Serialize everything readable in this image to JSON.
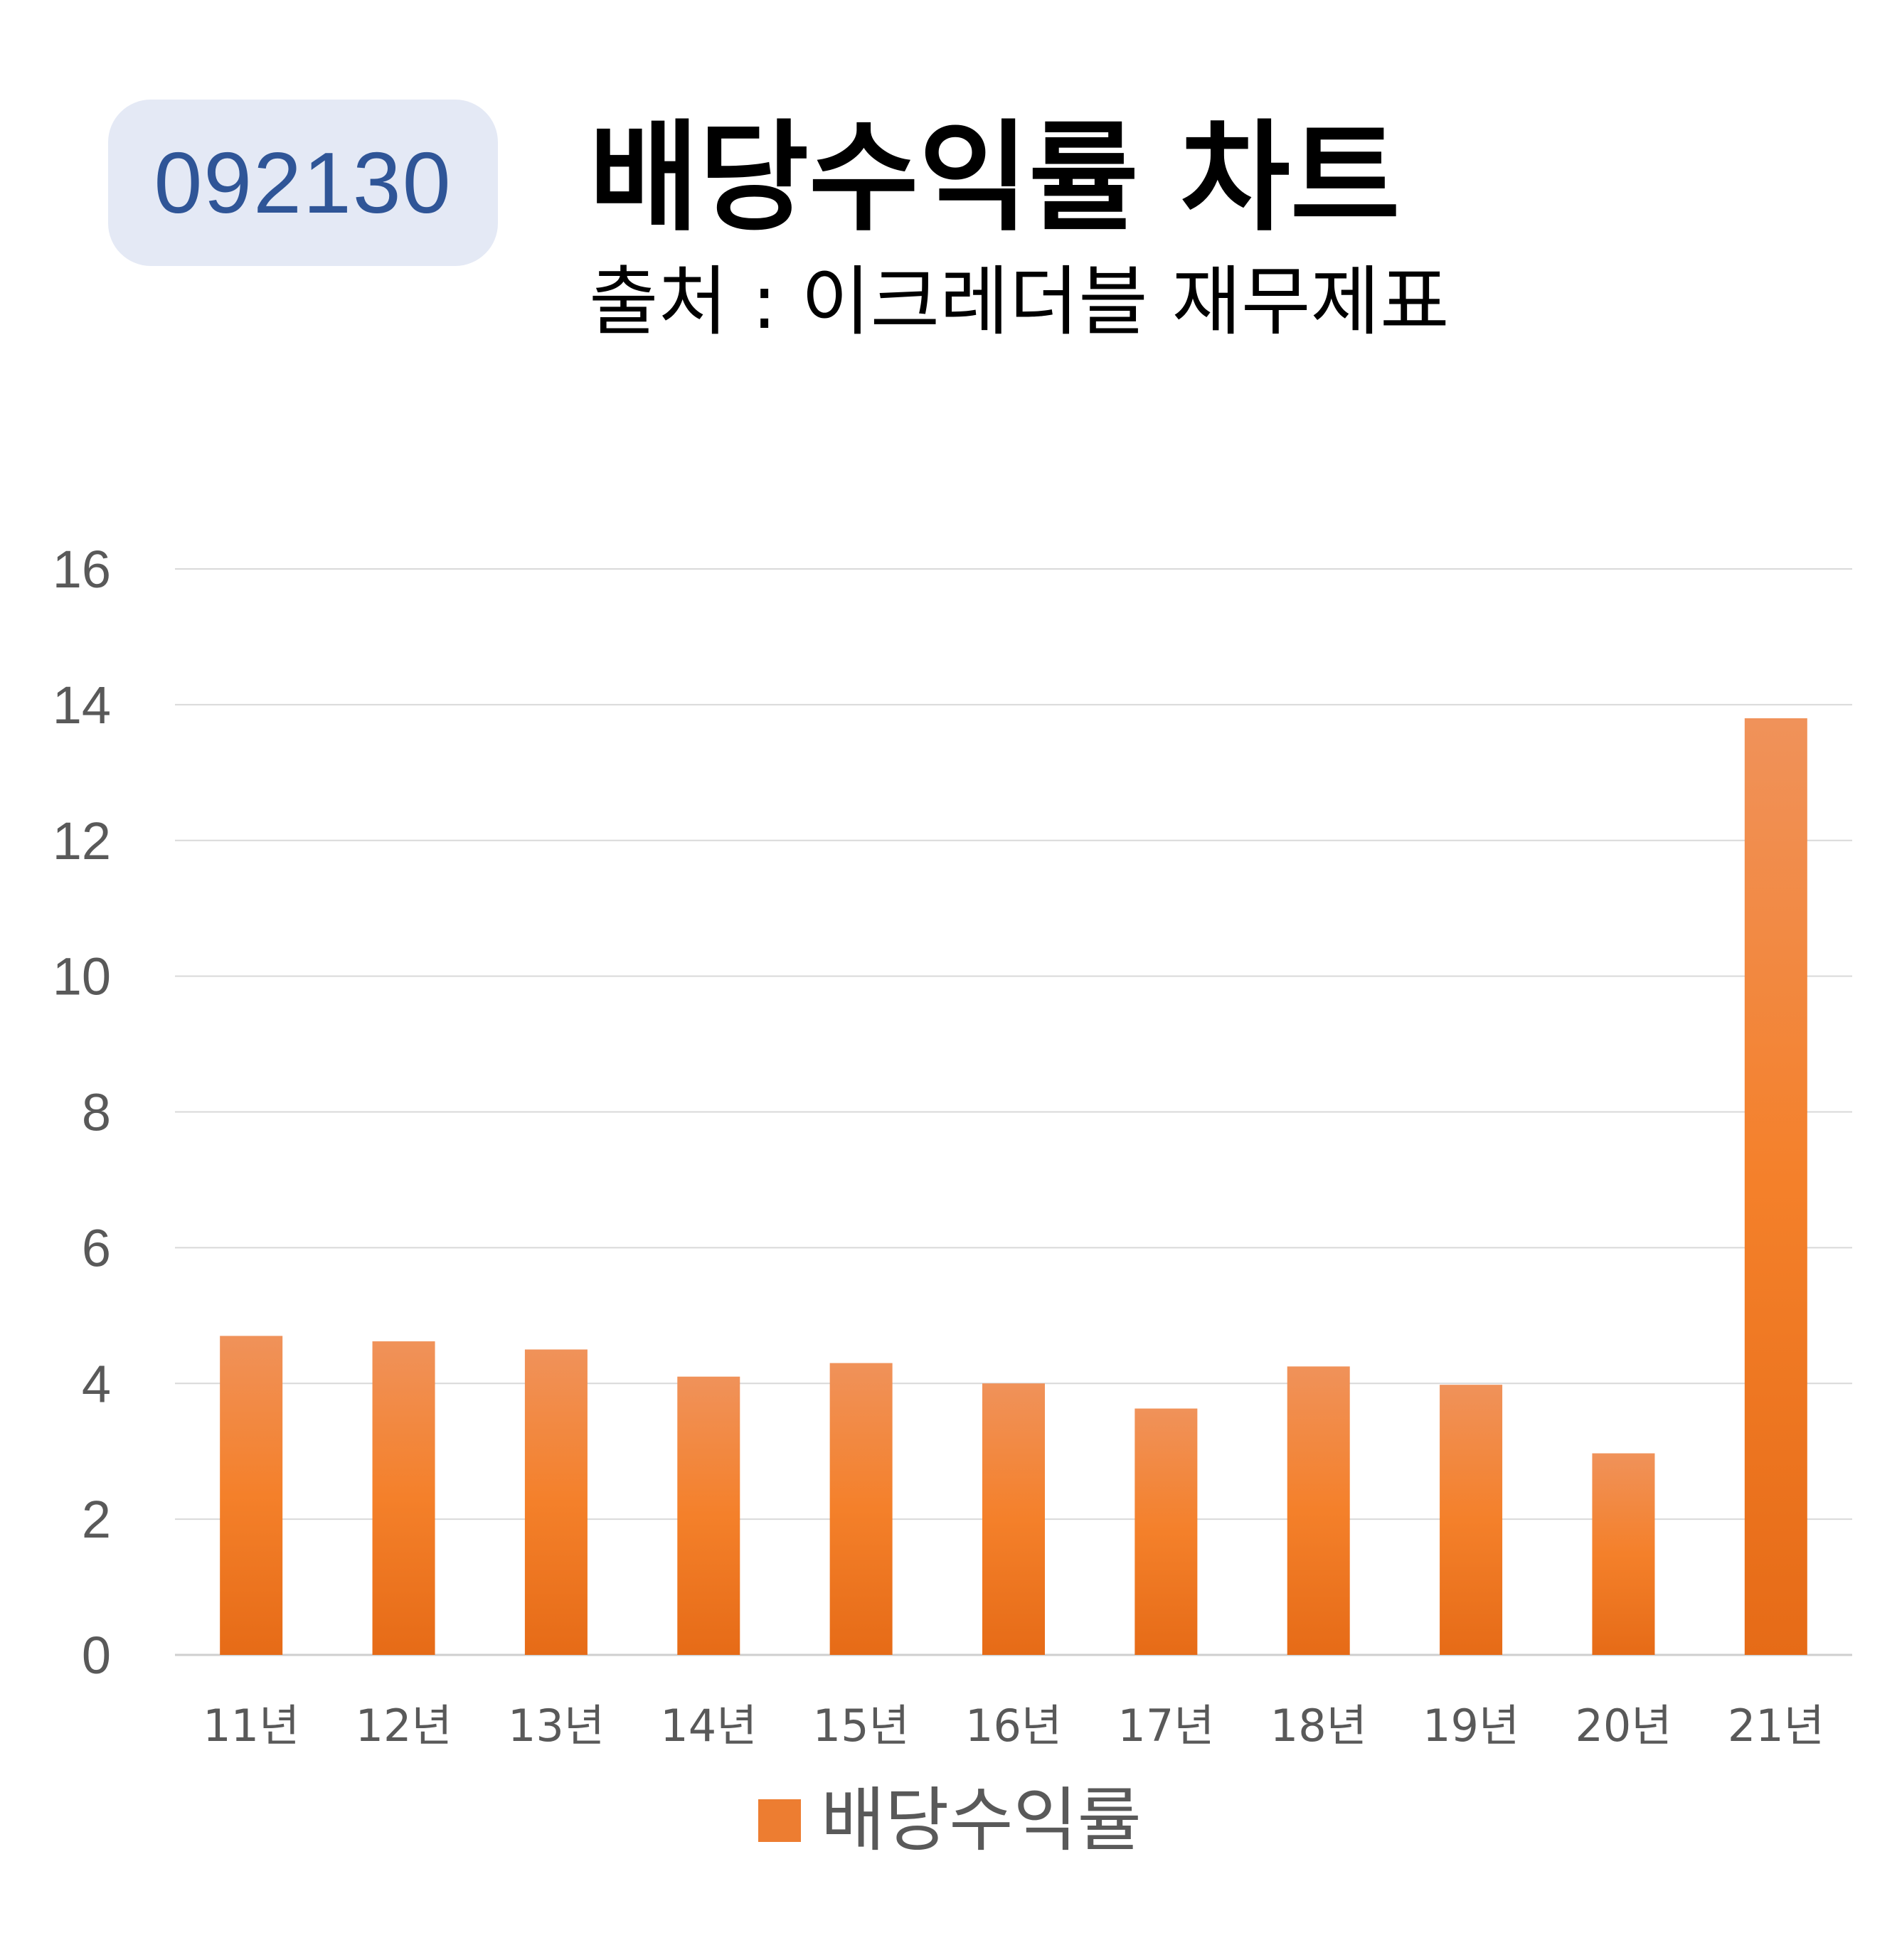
{
  "header": {
    "code": "092130",
    "title": "배당수익률 차트",
    "subtitle": "출처 : 이크레더블 재무제표"
  },
  "chart_data": {
    "type": "bar",
    "title": "배당수익률 차트",
    "categories": [
      "11년",
      "12년",
      "13년",
      "14년",
      "15년",
      "16년",
      "17년",
      "18년",
      "19년",
      "20년",
      "21년"
    ],
    "series": [
      {
        "name": "배당수익률",
        "color": "#ed7d31",
        "values": [
          4.7,
          4.62,
          4.5,
          4.1,
          4.3,
          4.0,
          3.63,
          4.25,
          3.98,
          2.97,
          13.8
        ]
      }
    ],
    "ylim": [
      0,
      16
    ],
    "yticks": [
      0,
      2,
      4,
      6,
      8,
      10,
      12,
      14,
      16
    ],
    "grid": true,
    "legend": "bottom",
    "xlabel": "",
    "ylabel": ""
  }
}
